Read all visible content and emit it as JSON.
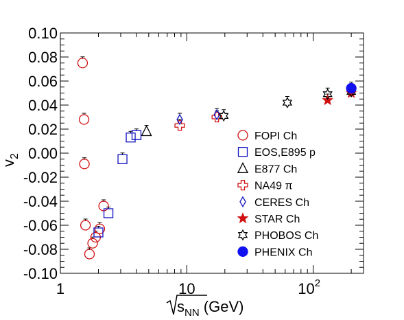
{
  "chart_data": {
    "type": "scatter",
    "x_scale": "log",
    "xlim": [
      1,
      250
    ],
    "ylim": [
      -0.1,
      0.1
    ],
    "x_ticks": [
      {
        "value": 1,
        "label": "1"
      },
      {
        "value": 10,
        "label": "10"
      },
      {
        "value": 100,
        "label": "10",
        "sup": "2"
      }
    ],
    "y_ticks": [
      "-0.10",
      "-0.08",
      "-0.06",
      "-0.04",
      "-0.02",
      "0.00",
      "0.02",
      "0.04",
      "0.06",
      "0.08",
      "0.10"
    ],
    "xlabel": {
      "root": "s",
      "sub": "NN",
      "unit": " (GeV)"
    },
    "ylabel": {
      "main": "v",
      "sub": "2"
    },
    "legend_position": "right",
    "series": [
      {
        "name": "FOPI  Ch",
        "marker": "circle-open",
        "color": "#d01010",
        "points": [
          [
            1.5,
            0.075
          ],
          [
            1.54,
            0.028
          ],
          [
            1.55,
            -0.009
          ],
          [
            1.58,
            -0.06
          ],
          [
            1.7,
            -0.084
          ],
          [
            1.8,
            -0.075
          ],
          [
            1.9,
            -0.07
          ],
          [
            2.05,
            -0.063
          ],
          [
            2.2,
            -0.044
          ]
        ]
      },
      {
        "name": "EOS,E895   p",
        "marker": "square-open",
        "color": "#1010c0",
        "points": [
          [
            2.0,
            -0.066
          ],
          [
            2.4,
            -0.05
          ],
          [
            3.1,
            -0.005
          ],
          [
            3.6,
            0.013
          ],
          [
            4.0,
            0.015
          ]
        ]
      },
      {
        "name": "E877   Ch",
        "marker": "triangle-open",
        "color": "#000000",
        "points": [
          [
            4.8,
            0.018
          ]
        ]
      },
      {
        "name": "NA49   π",
        "marker": "cross-open",
        "color": "#d01010",
        "points": [
          [
            8.8,
            0.023
          ],
          [
            17.3,
            0.03
          ]
        ]
      },
      {
        "name": "CERES   Ch",
        "marker": "diamond-open",
        "color": "#1010c0",
        "points": [
          [
            8.8,
            0.028
          ],
          [
            17.3,
            0.032
          ]
        ]
      },
      {
        "name": "STAR   Ch",
        "marker": "star-filled",
        "color": "#d01010",
        "points": [
          [
            130,
            0.044
          ],
          [
            200,
            0.05
          ]
        ]
      },
      {
        "name": "PHOBOS   Ch",
        "marker": "star-open",
        "color": "#000000",
        "points": [
          [
            19.6,
            0.031
          ],
          [
            62.4,
            0.042
          ],
          [
            130,
            0.049
          ],
          [
            200,
            0.051
          ]
        ]
      },
      {
        "name": "PHENIX  Ch",
        "marker": "circle-filled",
        "color": "#1010f0",
        "points": [
          [
            200,
            0.054
          ]
        ]
      }
    ]
  }
}
